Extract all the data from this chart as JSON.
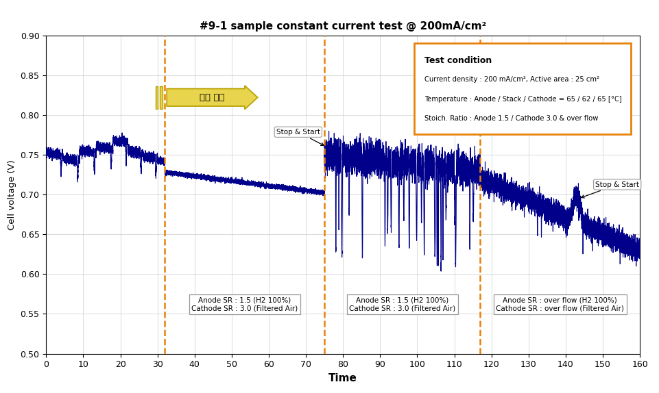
{
  "title": "#9-1 sample constant current test @ 200mA/cm²",
  "xlabel": "Time",
  "ylabel": "Cell voltage (V)",
  "xlim": [
    0,
    160
  ],
  "ylim": [
    0.5,
    0.9
  ],
  "xticks": [
    0,
    10,
    20,
    30,
    40,
    50,
    60,
    70,
    80,
    90,
    100,
    110,
    120,
    130,
    140,
    150,
    160
  ],
  "yticks": [
    0.5,
    0.55,
    0.6,
    0.65,
    0.7,
    0.75,
    0.8,
    0.85,
    0.9
  ],
  "vline1_x": 32,
  "vline2_x": 75,
  "vline3_x": 117,
  "line_color": "#00008B",
  "vline_color": "#E8820C",
  "bg_color": "#FFFFFF",
  "grid_color": "#CCCCCC",
  "test_condition_title": "Test condition",
  "test_condition_line1": "Current density : 200 mA/cm², Active area : 25 cm²",
  "test_condition_line2": "Temperature : Anode / Stack / Cathode = 65 / 62 / 65 [°C]",
  "test_condition_line3": "Stoich. Ratio : Anode 1.5 / Cathode 3.0 & over flow",
  "tc_box_edgecolor": "#E8820C",
  "arrow_label": "연속 운전",
  "box1_text": "Anode SR : 1.5 (H2 100%)\nCathode SR : 3.0 (Filtered Air)",
  "box2_text": "Anode SR : 1.5 (H2 100%)\nCathode SR : 3.0 (Filtered Air)",
  "box3_text": "Anode SR : over flow (H2 100%)\nCathode SR : over flow (Filtered Air)"
}
